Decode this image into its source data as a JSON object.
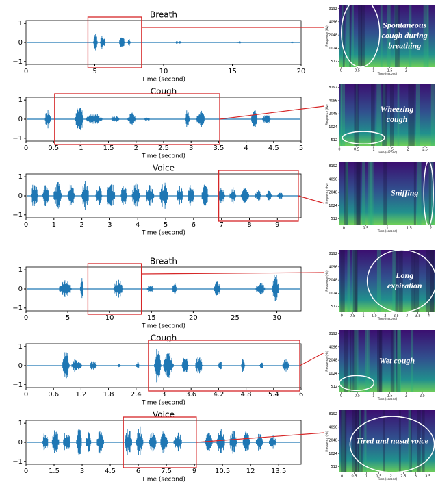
{
  "panels": [
    {
      "chart_data": {
        "type": "waveform",
        "title": "Breath",
        "xlabel": "Time (second)",
        "xlim": [
          0,
          20
        ],
        "xticks": [
          0,
          5,
          10,
          15,
          20
        ],
        "ylim": [
          -1.15,
          1.15
        ],
        "yticks": [
          {
            "value": -1,
            "label": "−1"
          },
          0,
          1
        ],
        "color": "#1f77b4",
        "highlight": [
          4.5,
          8.4
        ],
        "bursts": [
          {
            "start": 4.9,
            "end": 5.3,
            "amplitude": 0.55
          },
          {
            "start": 5.4,
            "end": 5.9,
            "amplitude": 0.4
          },
          {
            "start": 6.8,
            "end": 7.3,
            "amplitude": 0.4
          },
          {
            "start": 7.4,
            "end": 7.7,
            "amplitude": 0.2
          },
          {
            "start": 10.8,
            "end": 11.6,
            "amplitude": 0.08
          },
          {
            "start": 15.3,
            "end": 15.8,
            "amplitude": 0.06
          },
          {
            "start": 19.2,
            "end": 19.6,
            "amplitude": 0.04
          }
        ]
      },
      "spectrogram": {
        "annotation": [
          "Spontaneous",
          "cough during",
          "breathing"
        ],
        "ylabel": "Frequency (Hz)",
        "xlabel": "Time (second)",
        "yticks": [
          8192,
          4096,
          2048,
          1024,
          512
        ],
        "ylim": [
          380,
          10000
        ],
        "xticks": [
          0,
          0.5,
          1,
          1.5,
          2
        ],
        "xlim": [
          -0.05,
          2.9
        ]
      }
    },
    {
      "chart_data": {
        "type": "waveform",
        "title": "Cough",
        "xlabel": "Time (second)",
        "xlim": [
          0,
          5
        ],
        "xticks": [
          0,
          0.5,
          1,
          1.5,
          2,
          2.5,
          3,
          3.5,
          4,
          4.5,
          5
        ],
        "ylim": [
          -1.15,
          1.15
        ],
        "yticks": [
          {
            "value": -1,
            "label": "−1"
          },
          0,
          1
        ],
        "color": "#1f77b4",
        "highlight": [
          0.52,
          3.52
        ],
        "bursts": [
          {
            "start": 0.35,
            "end": 0.5,
            "amplitude": 0.55
          },
          {
            "start": 0.9,
            "end": 1.1,
            "amplitude": 0.75
          },
          {
            "start": 1.1,
            "end": 1.5,
            "amplitude": 0.3
          },
          {
            "start": 1.55,
            "end": 1.75,
            "amplitude": 0.2
          },
          {
            "start": 1.85,
            "end": 2.05,
            "amplitude": 0.35
          },
          {
            "start": 2.15,
            "end": 2.3,
            "amplitude": 0.1
          },
          {
            "start": 2.9,
            "end": 3.0,
            "amplitude": 0.55
          },
          {
            "start": 3.1,
            "end": 3.3,
            "amplitude": 0.55
          },
          {
            "start": 4.1,
            "end": 4.25,
            "amplitude": 0.55
          },
          {
            "start": 4.3,
            "end": 4.5,
            "amplitude": 0.3
          }
        ]
      },
      "spectrogram": {
        "annotation": [
          "Wheezing",
          "cough"
        ],
        "ylabel": "Frequency (Hz)",
        "xlabel": "Time (second)",
        "yticks": [
          8192,
          4096,
          2048,
          1024,
          512
        ],
        "ylim": [
          380,
          10000
        ],
        "xticks": [
          0,
          0.5,
          1,
          1.5,
          2,
          2.5
        ],
        "xlim": [
          0,
          2.8
        ]
      }
    },
    {
      "chart_data": {
        "type": "waveform",
        "title": "Voice",
        "xlabel": "Time (second)",
        "xlim": [
          0,
          9.85
        ],
        "xticks": [
          0,
          1,
          2,
          3,
          4,
          5,
          6,
          7,
          8,
          9
        ],
        "ylim": [
          -1.15,
          1.15
        ],
        "yticks": [
          {
            "value": -1,
            "label": "−1"
          },
          0,
          1
        ],
        "color": "#1f77b4",
        "highlight": [
          6.9,
          9.75
        ],
        "bursts": [
          {
            "start": 0.2,
            "end": 0.5,
            "amplitude": 0.8
          },
          {
            "start": 0.6,
            "end": 0.9,
            "amplitude": 0.7
          },
          {
            "start": 1.0,
            "end": 1.4,
            "amplitude": 0.75
          },
          {
            "start": 1.5,
            "end": 1.85,
            "amplitude": 0.7
          },
          {
            "start": 2.0,
            "end": 2.35,
            "amplitude": 0.8
          },
          {
            "start": 2.5,
            "end": 2.8,
            "amplitude": 0.6
          },
          {
            "start": 2.9,
            "end": 3.3,
            "amplitude": 0.75
          },
          {
            "start": 3.4,
            "end": 3.7,
            "amplitude": 0.6
          },
          {
            "start": 3.8,
            "end": 4.2,
            "amplitude": 0.7
          },
          {
            "start": 4.3,
            "end": 4.7,
            "amplitude": 0.7
          },
          {
            "start": 4.8,
            "end": 5.2,
            "amplitude": 0.75
          },
          {
            "start": 5.4,
            "end": 5.7,
            "amplitude": 0.6
          },
          {
            "start": 5.8,
            "end": 6.1,
            "amplitude": 0.6
          },
          {
            "start": 6.3,
            "end": 6.6,
            "amplitude": 0.85
          },
          {
            "start": 6.9,
            "end": 7.2,
            "amplitude": 0.5
          },
          {
            "start": 7.3,
            "end": 7.6,
            "amplitude": 0.5
          },
          {
            "start": 7.7,
            "end": 8.1,
            "amplitude": 0.45
          },
          {
            "start": 8.2,
            "end": 8.5,
            "amplitude": 0.35
          },
          {
            "start": 8.6,
            "end": 8.9,
            "amplitude": 0.3
          },
          {
            "start": 9.0,
            "end": 9.3,
            "amplitude": 0.2
          }
        ]
      },
      "spectrogram": {
        "annotation": [
          "Sniffing"
        ],
        "ylabel": "Frequency (Hz)",
        "xlabel": "Time (second)",
        "yticks": [
          8192,
          4096,
          2048,
          1024,
          512
        ],
        "ylim": [
          380,
          10000
        ],
        "xticks": [
          0,
          0.5,
          1,
          1.5,
          2
        ],
        "xlim": [
          -0.1,
          2.1
        ]
      }
    },
    {
      "chart_data": {
        "type": "waveform",
        "title": "Breath",
        "xlabel": "Time (second)",
        "xlim": [
          0,
          32.9
        ],
        "xticks": [
          0,
          5,
          10,
          15,
          20,
          25,
          30
        ],
        "ylim": [
          -1.15,
          1.15
        ],
        "yticks": [
          {
            "value": -1,
            "label": "−1"
          },
          0,
          1
        ],
        "color": "#1f77b4",
        "highlight": [
          7.4,
          13.8
        ],
        "bursts": [
          {
            "start": 4,
            "end": 6,
            "amplitude": 0.55
          },
          {
            "start": 6.5,
            "end": 7,
            "amplitude": 0.7
          },
          {
            "start": 10.5,
            "end": 12,
            "amplitude": 0.55
          },
          {
            "start": 14.5,
            "end": 15.5,
            "amplitude": 0.25
          },
          {
            "start": 17.5,
            "end": 18.2,
            "amplitude": 0.35
          },
          {
            "start": 22.5,
            "end": 23.5,
            "amplitude": 0.5
          },
          {
            "start": 27.5,
            "end": 29,
            "amplitude": 0.35
          },
          {
            "start": 29.5,
            "end": 30.5,
            "amplitude": 0.85
          }
        ]
      },
      "spectrogram": {
        "annotation": [
          "Long",
          "expiration"
        ],
        "ylabel": "Frequency (Hz)",
        "xlabel": "Time (second)",
        "yticks": [
          8192,
          4096,
          2048,
          1024,
          512
        ],
        "ylim": [
          380,
          10000
        ],
        "xticks": [
          0,
          0.5,
          1,
          1.5,
          2,
          2.5,
          3,
          3.5,
          4
        ],
        "xlim": [
          -0.1,
          4.3
        ]
      }
    },
    {
      "chart_data": {
        "type": "waveform",
        "title": "Cough",
        "xlabel": "Time (second)",
        "xlim": [
          0,
          6
        ],
        "xticks": [
          0,
          0.6,
          1.2,
          1.8,
          2.4,
          3,
          3.6,
          4.2,
          4.8,
          5.4,
          6
        ],
        "ylim": [
          -1.15,
          1.15
        ],
        "yticks": [
          {
            "value": -1,
            "label": "−1"
          },
          0,
          1
        ],
        "color": "#1f77b4",
        "highlight": [
          2.67,
          5.97
        ],
        "bursts": [
          {
            "start": 0.8,
            "end": 1.0,
            "amplitude": 0.9
          },
          {
            "start": 1.0,
            "end": 1.3,
            "amplitude": 0.4
          },
          {
            "start": 1.4,
            "end": 1.6,
            "amplitude": 0.3
          },
          {
            "start": 2.0,
            "end": 2.1,
            "amplitude": 0.1
          },
          {
            "start": 2.4,
            "end": 2.5,
            "amplitude": 0.2
          },
          {
            "start": 2.8,
            "end": 3.0,
            "amplitude": 1.0
          },
          {
            "start": 3.0,
            "end": 3.3,
            "amplitude": 0.7
          },
          {
            "start": 3.4,
            "end": 3.6,
            "amplitude": 0.5
          },
          {
            "start": 3.7,
            "end": 3.9,
            "amplitude": 0.6
          },
          {
            "start": 4.2,
            "end": 4.3,
            "amplitude": 0.3
          },
          {
            "start": 4.7,
            "end": 4.8,
            "amplitude": 0.4
          },
          {
            "start": 5.1,
            "end": 5.2,
            "amplitude": 0.3
          },
          {
            "start": 5.6,
            "end": 5.8,
            "amplitude": 0.4
          }
        ]
      },
      "spectrogram": {
        "annotation": [
          "Wet cough"
        ],
        "ylabel": "Frequency (Hz)",
        "xlabel": "Time (second)",
        "yticks": [
          8192,
          4096,
          2048,
          1024,
          512
        ],
        "ylim": [
          380,
          10000
        ],
        "xticks": [
          0,
          0.5,
          1,
          1.5,
          2,
          2.5
        ],
        "xlim": [
          -0.05,
          2.9
        ]
      }
    },
    {
      "chart_data": {
        "type": "waveform",
        "title": "Voice",
        "xlabel": "Time (second)",
        "xlim": [
          0,
          14.7
        ],
        "xticks": [
          0,
          1.5,
          3,
          4.5,
          6,
          7.5,
          9,
          10.5,
          12,
          13.5
        ],
        "ylim": [
          -1.15,
          1.15
        ],
        "yticks": [
          {
            "value": -1,
            "label": "−1"
          },
          0,
          1
        ],
        "color": "#1f77b4",
        "highlight": [
          5.2,
          9.1
        ],
        "bursts": [
          {
            "start": 0.9,
            "end": 1.3,
            "amplitude": 0.6
          },
          {
            "start": 1.4,
            "end": 1.9,
            "amplitude": 0.85
          },
          {
            "start": 2.0,
            "end": 2.5,
            "amplitude": 0.7
          },
          {
            "start": 2.7,
            "end": 3.1,
            "amplitude": 0.8
          },
          {
            "start": 3.2,
            "end": 3.6,
            "amplitude": 0.6
          },
          {
            "start": 3.8,
            "end": 4.3,
            "amplitude": 0.75
          },
          {
            "start": 5.3,
            "end": 5.8,
            "amplitude": 0.8
          },
          {
            "start": 5.9,
            "end": 6.4,
            "amplitude": 0.9
          },
          {
            "start": 6.6,
            "end": 7.1,
            "amplitude": 0.7
          },
          {
            "start": 7.2,
            "end": 7.7,
            "amplitude": 0.8
          },
          {
            "start": 7.9,
            "end": 8.5,
            "amplitude": 0.6
          },
          {
            "start": 9.6,
            "end": 10.1,
            "amplitude": 0.6
          },
          {
            "start": 10.2,
            "end": 10.8,
            "amplitude": 0.7
          },
          {
            "start": 10.9,
            "end": 11.4,
            "amplitude": 0.7
          },
          {
            "start": 11.6,
            "end": 12.1,
            "amplitude": 0.6
          },
          {
            "start": 12.3,
            "end": 12.8,
            "amplitude": 0.5
          },
          {
            "start": 13.0,
            "end": 13.5,
            "amplitude": 0.4
          }
        ]
      },
      "spectrogram": {
        "annotation": [
          "Tired and nasal voice"
        ],
        "ylabel": "Frequency (Hz)",
        "xlabel": "Time (second)",
        "yticks": [
          8192,
          4096,
          2048,
          1024,
          512
        ],
        "ylim": [
          380,
          10000
        ],
        "xticks": [
          0,
          0.5,
          1,
          1.5,
          2,
          2.5,
          3,
          3.5
        ],
        "xlim": [
          -0.1,
          3.8
        ]
      }
    }
  ]
}
